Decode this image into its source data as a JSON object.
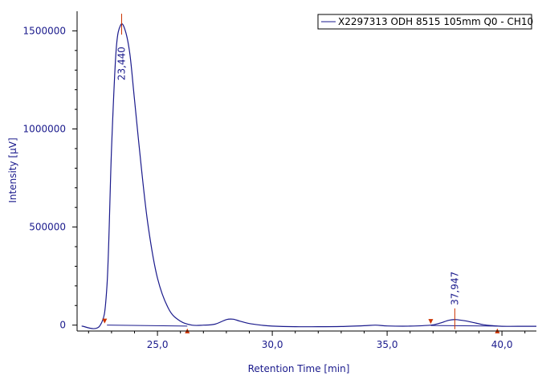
{
  "chart_data": {
    "type": "line",
    "title": "",
    "xlabel": "Retention Time [min]",
    "ylabel": "Intensity [µV]",
    "xlim": [
      21.5,
      41.5
    ],
    "ylim": [
      -30000,
      1600000
    ],
    "x_ticks": [
      25,
      30,
      35,
      40
    ],
    "x_tick_labels": [
      "25,0",
      "30,0",
      "35,0",
      "40,0"
    ],
    "y_ticks": [
      0,
      500000,
      1000000,
      1500000
    ],
    "y_tick_labels": [
      "0",
      "500000",
      "1000000",
      "1500000"
    ],
    "grid": false,
    "legend_position": "top-right",
    "series": [
      {
        "name": "X2297313 ODH 8515 105mm Q0 - CH10",
        "color": "#1a1a8c",
        "x": [
          21.7,
          22.5,
          22.8,
          23.0,
          23.2,
          23.4,
          23.6,
          23.8,
          24.0,
          24.3,
          24.6,
          25.0,
          25.5,
          26.0,
          26.5,
          27.0,
          27.5,
          28.0,
          28.3,
          28.6,
          29.0,
          29.5,
          30.0,
          31.0,
          32.0,
          33.0,
          34.0,
          34.5,
          35.0,
          36.0,
          36.9,
          37.3,
          37.7,
          38.0,
          38.4,
          38.8,
          39.2,
          39.6,
          40.0,
          41.0,
          41.5
        ],
        "y": [
          -5000,
          -2000,
          200000,
          900000,
          1400000,
          1530000,
          1500000,
          1380000,
          1150000,
          800000,
          500000,
          240000,
          80000,
          20000,
          0,
          0,
          5000,
          28000,
          30000,
          20000,
          8000,
          0,
          -5000,
          -8000,
          -8000,
          -7000,
          -3000,
          0,
          -4000,
          -5000,
          0,
          10000,
          25000,
          28000,
          22000,
          12000,
          2000,
          -3000,
          -6000,
          -6000,
          -6000
        ]
      }
    ],
    "baseline_segments": [
      {
        "x": [
          22.8,
          26.3
        ],
        "y": [
          0,
          -5000
        ]
      },
      {
        "x": [
          36.9,
          39.8
        ],
        "y": [
          -2000,
          -5000
        ]
      }
    ],
    "peak_labels": [
      {
        "text": "23,440",
        "x": 23.44,
        "y": 1530000
      },
      {
        "text": "37,947",
        "x": 37.947,
        "y": 28000
      }
    ],
    "integration_markers": [
      {
        "x": 22.7,
        "y": 0,
        "kind": "start"
      },
      {
        "x": 26.3,
        "y": -5000,
        "kind": "end"
      },
      {
        "x": 36.9,
        "y": -2000,
        "kind": "start"
      },
      {
        "x": 39.8,
        "y": -5000,
        "kind": "end"
      }
    ],
    "marker_color": "#cc3300"
  }
}
